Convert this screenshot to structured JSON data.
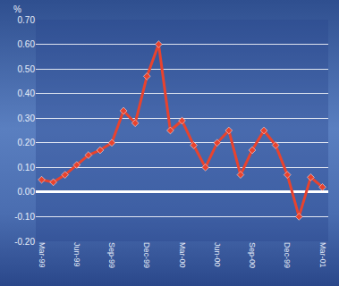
{
  "chart_data": {
    "type": "line",
    "ylabel": "%",
    "categories": [
      "Mar-99",
      null,
      null,
      "Jun-99",
      null,
      null,
      "Sep-99",
      null,
      null,
      "Dec-99",
      null,
      null,
      "Mar-00",
      null,
      null,
      "Jun-00",
      null,
      null,
      "Sep-00",
      null,
      null,
      "Dec-99",
      null,
      null,
      "Mar-01"
    ],
    "values": [
      0.05,
      0.04,
      0.07,
      0.11,
      0.15,
      0.17,
      0.2,
      0.33,
      0.28,
      0.47,
      0.6,
      0.25,
      0.29,
      0.19,
      0.1,
      0.2,
      0.25,
      0.07,
      0.17,
      0.25,
      0.19,
      0.07,
      -0.1,
      0.06,
      0.02
    ],
    "color": "#e8432e",
    "marker": "diamond",
    "ylim": [
      -0.2,
      0.7
    ],
    "yticks": [
      {
        "value": -0.2,
        "label": "-0.20"
      },
      {
        "value": -0.1,
        "label": "-0.10"
      },
      {
        "value": 0,
        "label": "0.00"
      },
      {
        "value": 0.1,
        "label": "0.10"
      },
      {
        "value": 0.2,
        "label": "0.20"
      },
      {
        "value": 0.3,
        "label": "0.30"
      },
      {
        "value": 0.4,
        "label": "0.40"
      },
      {
        "value": 0.5,
        "label": "0.50"
      },
      {
        "value": 0.6,
        "label": "0.60"
      },
      {
        "value": 0.7,
        "label": "0.70"
      }
    ],
    "grid": true
  }
}
